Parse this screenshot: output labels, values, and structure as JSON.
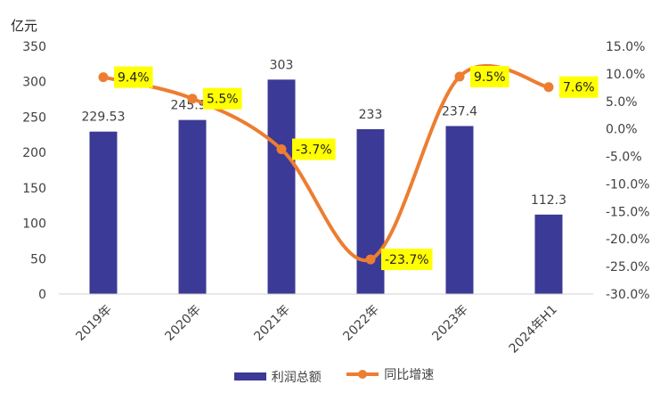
{
  "chart_data": {
    "type": "bar+line",
    "unit_label": "亿元",
    "categories": [
      "2019年",
      "2020年",
      "2021年",
      "2022年",
      "2023年",
      "2024年H1"
    ],
    "series": [
      {
        "name": "利润总额",
        "type": "bar",
        "axis": "left",
        "values": [
          229.53,
          245.97,
          303,
          233,
          237.4,
          112.3
        ],
        "labels": [
          "229.53",
          "245.97",
          "303",
          "233",
          "237.4",
          "112.3"
        ]
      },
      {
        "name": "同比增速",
        "type": "line",
        "axis": "right",
        "values": [
          9.4,
          5.5,
          -3.7,
          -23.7,
          9.5,
          7.6
        ],
        "labels": [
          "9.4%",
          "5.5%",
          "-3.7%",
          "-23.7%",
          "9.5%",
          "7.6%"
        ]
      }
    ],
    "left_axis": {
      "min": 0,
      "max": 350,
      "step": 50,
      "ticks": [
        "0",
        "50",
        "100",
        "150",
        "200",
        "250",
        "300",
        "350"
      ]
    },
    "right_axis": {
      "min": -30,
      "max": 15,
      "step": 5,
      "ticks": [
        "-30.0%",
        "-25.0%",
        "-20.0%",
        "-15.0%",
        "-10.0%",
        "-5.0%",
        "0.0%",
        "5.0%",
        "10.0%",
        "15.0%"
      ]
    },
    "grid": false,
    "legend_position": "bottom",
    "colors": {
      "bar": "#3b3a96",
      "line": "#ed7d31",
      "label_bg": "#ffff00"
    }
  }
}
